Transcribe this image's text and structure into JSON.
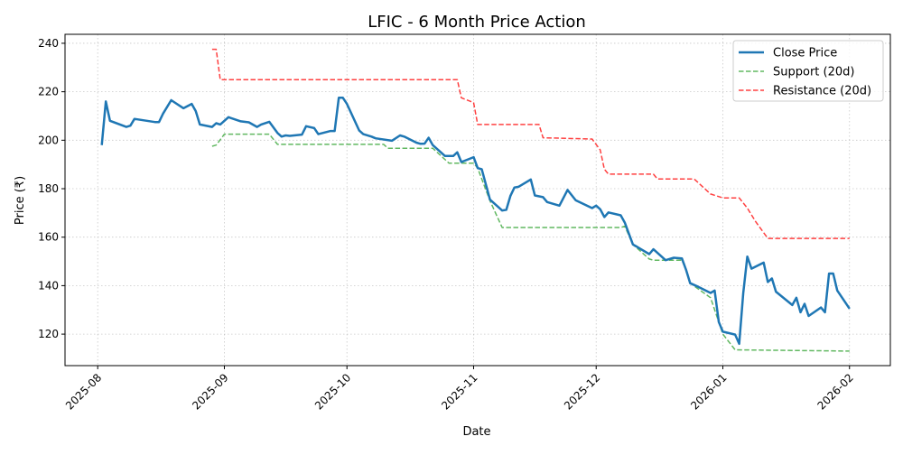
{
  "chart_data": {
    "type": "line",
    "title": "LFIC - 6 Month Price Action",
    "xlabel": "Date",
    "ylabel": "Price (₹)",
    "ylim": [
      107,
      243.7
    ],
    "xlim": [
      "2025-07-24",
      "2026-02-11"
    ],
    "grid": true,
    "legend_position": "top-right",
    "x_ticks": [
      {
        "date": "2025-08-01",
        "label": "2025-08"
      },
      {
        "date": "2025-09-01",
        "label": "2025-09"
      },
      {
        "date": "2025-10-01",
        "label": "2025-10"
      },
      {
        "date": "2025-11-01",
        "label": "2025-11"
      },
      {
        "date": "2025-12-01",
        "label": "2025-12"
      },
      {
        "date": "2026-01-01",
        "label": "2026-01"
      },
      {
        "date": "2026-02-01",
        "label": "2026-02"
      }
    ],
    "y_ticks": [
      120,
      140,
      160,
      180,
      200,
      220,
      240
    ],
    "series": [
      {
        "name": "Close Price",
        "color": "#1f77b4",
        "style": "solid",
        "points": [
          [
            "2025-08-02",
            198
          ],
          [
            "2025-08-03",
            216
          ],
          [
            "2025-08-04",
            208
          ],
          [
            "2025-08-08",
            205.5
          ],
          [
            "2025-08-09",
            206
          ],
          [
            "2025-08-10",
            208.8
          ],
          [
            "2025-08-15",
            207.5
          ],
          [
            "2025-08-16",
            207.5
          ],
          [
            "2025-08-17",
            211
          ],
          [
            "2025-08-19",
            216.5
          ],
          [
            "2025-08-22",
            213.2
          ],
          [
            "2025-08-24",
            215
          ],
          [
            "2025-08-25",
            212
          ],
          [
            "2025-08-26",
            206.5
          ],
          [
            "2025-08-29",
            205.5
          ],
          [
            "2025-08-30",
            207
          ],
          [
            "2025-08-31",
            206.5
          ],
          [
            "2025-09-02",
            209.5
          ],
          [
            "2025-09-05",
            207.8
          ],
          [
            "2025-09-07",
            207.4
          ],
          [
            "2025-09-09",
            205.5
          ],
          [
            "2025-09-10",
            206.5
          ],
          [
            "2025-09-12",
            207.6
          ],
          [
            "2025-09-14",
            203
          ],
          [
            "2025-09-15",
            201.5
          ],
          [
            "2025-09-16",
            202
          ],
          [
            "2025-09-17",
            201.8
          ],
          [
            "2025-09-20",
            202.3
          ],
          [
            "2025-09-21",
            205.8
          ],
          [
            "2025-09-23",
            205
          ],
          [
            "2025-09-24",
            202.5
          ],
          [
            "2025-09-27",
            203.8
          ],
          [
            "2025-09-28",
            203.8
          ],
          [
            "2025-09-29",
            217.5
          ],
          [
            "2025-09-30",
            217.5
          ],
          [
            "2025-10-01",
            215
          ],
          [
            "2025-10-04",
            204
          ],
          [
            "2025-10-05",
            202.5
          ],
          [
            "2025-10-07",
            201.5
          ],
          [
            "2025-10-08",
            200.8
          ],
          [
            "2025-10-12",
            199.8
          ],
          [
            "2025-10-14",
            202
          ],
          [
            "2025-10-15",
            201.5
          ],
          [
            "2025-10-18",
            199
          ],
          [
            "2025-10-19",
            198.5
          ],
          [
            "2025-10-20",
            198.6
          ],
          [
            "2025-10-21",
            201
          ],
          [
            "2025-10-22",
            198
          ],
          [
            "2025-10-25",
            193.5
          ],
          [
            "2025-10-27",
            193.5
          ],
          [
            "2025-10-28",
            195
          ],
          [
            "2025-10-29",
            191
          ],
          [
            "2025-11-01",
            193
          ],
          [
            "2025-11-02",
            188.5
          ],
          [
            "2025-11-03",
            188
          ],
          [
            "2025-11-05",
            175.5
          ],
          [
            "2025-11-08",
            171
          ],
          [
            "2025-11-09",
            171.3
          ],
          [
            "2025-11-10",
            177
          ],
          [
            "2025-11-11",
            180.5
          ],
          [
            "2025-11-12",
            180.8
          ],
          [
            "2025-11-15",
            183.8
          ],
          [
            "2025-11-16",
            177.2
          ],
          [
            "2025-11-18",
            176.5
          ],
          [
            "2025-11-19",
            174.5
          ],
          [
            "2025-11-22",
            173
          ],
          [
            "2025-11-24",
            179.5
          ],
          [
            "2025-11-26",
            175.2
          ],
          [
            "2025-11-30",
            172
          ],
          [
            "2025-12-01",
            173
          ],
          [
            "2025-12-02",
            171.5
          ],
          [
            "2025-12-03",
            168.3
          ],
          [
            "2025-12-04",
            170.2
          ],
          [
            "2025-12-07",
            169
          ],
          [
            "2025-12-08",
            166
          ],
          [
            "2025-12-10",
            157
          ],
          [
            "2025-12-11",
            156
          ],
          [
            "2025-12-14",
            153
          ],
          [
            "2025-12-15",
            155
          ],
          [
            "2025-12-18",
            150.5
          ],
          [
            "2025-12-20",
            151.5
          ],
          [
            "2025-12-22",
            151.2
          ],
          [
            "2025-12-23",
            146.5
          ],
          [
            "2025-12-24",
            141
          ],
          [
            "2025-12-26",
            139.5
          ],
          [
            "2025-12-29",
            137
          ],
          [
            "2025-12-30",
            138
          ],
          [
            "2025-12-31",
            125
          ],
          [
            "2026-01-01",
            121
          ],
          [
            "2026-01-04",
            119.8
          ],
          [
            "2026-01-05",
            116
          ],
          [
            "2026-01-06",
            137
          ],
          [
            "2026-01-07",
            152
          ],
          [
            "2026-01-08",
            147
          ],
          [
            "2026-01-11",
            149.5
          ],
          [
            "2026-01-12",
            141.5
          ],
          [
            "2026-01-13",
            143
          ],
          [
            "2026-01-14",
            137.5
          ],
          [
            "2026-01-18",
            132
          ],
          [
            "2026-01-19",
            135
          ],
          [
            "2026-01-20",
            129
          ],
          [
            "2026-01-21",
            132.5
          ],
          [
            "2026-01-22",
            127.5
          ],
          [
            "2026-01-25",
            131
          ],
          [
            "2026-01-26",
            129
          ],
          [
            "2026-01-27",
            145
          ],
          [
            "2026-01-28",
            145
          ],
          [
            "2026-01-29",
            138
          ],
          [
            "2026-02-01",
            130.5
          ]
        ]
      },
      {
        "name": "Support (20d)",
        "color": "#2ca02c",
        "style": "dashed",
        "points": [
          [
            "2025-08-29",
            197.5
          ],
          [
            "2025-08-30",
            198
          ],
          [
            "2025-09-01",
            202.5
          ],
          [
            "2025-09-12",
            202.5
          ],
          [
            "2025-09-14",
            198.3
          ],
          [
            "2025-10-10",
            198.3
          ],
          [
            "2025-10-11",
            196.7
          ],
          [
            "2025-10-22",
            196.7
          ],
          [
            "2025-10-26",
            190.5
          ],
          [
            "2025-11-01",
            190.5
          ],
          [
            "2025-11-02",
            188.5
          ],
          [
            "2025-11-05",
            175
          ],
          [
            "2025-11-08",
            164
          ],
          [
            "2025-12-07",
            164
          ],
          [
            "2025-12-08",
            164.5
          ],
          [
            "2025-12-10",
            157
          ],
          [
            "2025-12-14",
            151
          ],
          [
            "2025-12-15",
            150.5
          ],
          [
            "2025-12-22",
            150.5
          ],
          [
            "2025-12-23",
            146.5
          ],
          [
            "2025-12-24",
            141
          ],
          [
            "2025-12-29",
            135
          ],
          [
            "2025-12-31",
            125
          ],
          [
            "2026-01-01",
            120
          ],
          [
            "2026-01-04",
            113.5
          ],
          [
            "2026-02-01",
            113
          ]
        ]
      },
      {
        "name": "Resistance (20d)",
        "color": "#ff0000",
        "style": "dashed",
        "points": [
          [
            "2025-08-29",
            237.5
          ],
          [
            "2025-08-30",
            237.5
          ],
          [
            "2025-08-31",
            225
          ],
          [
            "2025-10-28",
            225
          ],
          [
            "2025-10-29",
            217.5
          ],
          [
            "2025-11-01",
            215.5
          ],
          [
            "2025-11-02",
            206.5
          ],
          [
            "2025-11-17",
            206.5
          ],
          [
            "2025-11-18",
            201
          ],
          [
            "2025-11-30",
            200.5
          ],
          [
            "2025-12-02",
            196
          ],
          [
            "2025-12-03",
            188
          ],
          [
            "2025-12-04",
            186
          ],
          [
            "2025-12-15",
            186
          ],
          [
            "2025-12-16",
            184
          ],
          [
            "2025-12-25",
            184
          ],
          [
            "2025-12-29",
            177.8
          ],
          [
            "2026-01-01",
            176.2
          ],
          [
            "2026-01-05",
            176.2
          ],
          [
            "2026-01-07",
            172
          ],
          [
            "2026-01-09",
            166.5
          ],
          [
            "2026-01-12",
            159.5
          ],
          [
            "2026-02-01",
            159.5
          ]
        ]
      }
    ]
  }
}
